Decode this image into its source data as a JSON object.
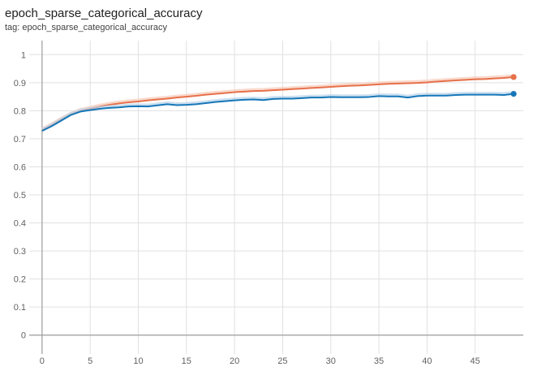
{
  "card": {
    "title": "epoch_sparse_categorical_accuracy",
    "tag": "tag: epoch_sparse_categorical_accuracy"
  },
  "colors": {
    "series_orange": "#e7704a",
    "series_blue": "#1677b8",
    "series_orange_raw": "#f6c9b7",
    "series_blue_raw": "#b8d3ea",
    "grid": "#e0e0e0",
    "axis": "#9e9e9e"
  },
  "chart_data": {
    "type": "line",
    "title": "epoch_sparse_categorical_accuracy",
    "xlabel": "",
    "ylabel": "",
    "xlim": [
      -1,
      50
    ],
    "ylim": [
      -0.05,
      1.05
    ],
    "x_ticks": [
      0,
      5,
      10,
      15,
      20,
      25,
      30,
      35,
      40,
      45
    ],
    "y_ticks": [
      0,
      0.1,
      0.2,
      0.3,
      0.4,
      0.5,
      0.6,
      0.7,
      0.8,
      0.9,
      1
    ],
    "y_tick_labels": [
      "0",
      "0.1",
      "0.2",
      "0.3",
      "0.4",
      "0.5",
      "0.6",
      "0.7",
      "0.8",
      "0.9",
      "1"
    ],
    "grid": true,
    "legend": "none",
    "series": [
      {
        "color": "#e7704a",
        "raw_color": "#f6c9b7",
        "x": [
          0,
          1,
          2,
          3,
          4,
          5,
          6,
          7,
          8,
          9,
          10,
          11,
          12,
          13,
          14,
          15,
          16,
          17,
          18,
          19,
          20,
          21,
          22,
          23,
          24,
          25,
          26,
          27,
          28,
          29,
          30,
          31,
          32,
          33,
          34,
          35,
          36,
          37,
          38,
          39,
          40,
          41,
          42,
          43,
          44,
          45,
          46,
          47,
          48,
          49
        ],
        "values": [
          0.73,
          0.748,
          0.768,
          0.786,
          0.799,
          0.807,
          0.815,
          0.821,
          0.826,
          0.83,
          0.833,
          0.837,
          0.84,
          0.843,
          0.847,
          0.85,
          0.853,
          0.857,
          0.86,
          0.863,
          0.866,
          0.868,
          0.87,
          0.871,
          0.873,
          0.875,
          0.877,
          0.879,
          0.881,
          0.883,
          0.885,
          0.887,
          0.889,
          0.89,
          0.892,
          0.894,
          0.896,
          0.897,
          0.898,
          0.899,
          0.901,
          0.904,
          0.906,
          0.908,
          0.91,
          0.912,
          0.913,
          0.915,
          0.917,
          0.92
        ]
      },
      {
        "color": "#1677b8",
        "raw_color": "#b8d3ea",
        "x": [
          0,
          1,
          2,
          3,
          4,
          5,
          6,
          7,
          8,
          9,
          10,
          11,
          12,
          13,
          14,
          15,
          16,
          17,
          18,
          19,
          20,
          21,
          22,
          23,
          24,
          25,
          26,
          27,
          28,
          29,
          30,
          31,
          32,
          33,
          34,
          35,
          36,
          37,
          38,
          39,
          40,
          41,
          42,
          43,
          44,
          45,
          46,
          47,
          48,
          49
        ],
        "values": [
          0.728,
          0.745,
          0.765,
          0.785,
          0.797,
          0.802,
          0.807,
          0.81,
          0.812,
          0.815,
          0.816,
          0.815,
          0.819,
          0.823,
          0.82,
          0.821,
          0.823,
          0.827,
          0.831,
          0.834,
          0.837,
          0.839,
          0.84,
          0.838,
          0.842,
          0.843,
          0.843,
          0.845,
          0.847,
          0.847,
          0.849,
          0.848,
          0.848,
          0.848,
          0.849,
          0.852,
          0.851,
          0.851,
          0.847,
          0.852,
          0.854,
          0.854,
          0.854,
          0.856,
          0.857,
          0.857,
          0.857,
          0.857,
          0.856,
          0.86
        ]
      }
    ]
  }
}
